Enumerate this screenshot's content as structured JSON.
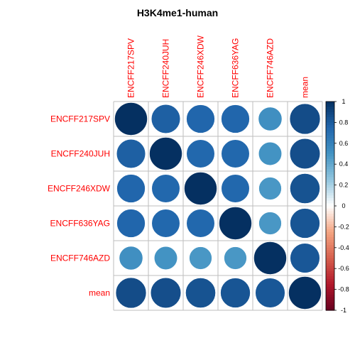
{
  "chart_data": {
    "type": "heatmap",
    "title": "H3K4me1-human",
    "rows": [
      "ENCFF217SPV",
      "ENCFF240JUH",
      "ENCFF246XDW",
      "ENCFF636YAG",
      "ENCFF746AZD",
      "mean"
    ],
    "columns": [
      "ENCFF217SPV",
      "ENCFF240JUH",
      "ENCFF246XDW",
      "ENCFF636YAG",
      "ENCFF746AZD",
      "mean"
    ],
    "values": [
      [
        1.0,
        0.78,
        0.75,
        0.75,
        0.52,
        0.87
      ],
      [
        0.78,
        1.0,
        0.74,
        0.74,
        0.5,
        0.86
      ],
      [
        0.75,
        0.74,
        1.0,
        0.74,
        0.48,
        0.84
      ],
      [
        0.75,
        0.74,
        0.74,
        1.0,
        0.48,
        0.83
      ],
      [
        0.52,
        0.5,
        0.48,
        0.48,
        1.0,
        0.82
      ],
      [
        0.87,
        0.86,
        0.84,
        0.83,
        0.82,
        1.0
      ]
    ],
    "value_range": [
      -1,
      1
    ],
    "colorbar_ticks": [
      "1",
      "0.8",
      "0.6",
      "0.4",
      "0.2",
      "0",
      "-0.2",
      "-0.4",
      "-0.6",
      "-0.8",
      "-1"
    ],
    "label_color": "#ff0000",
    "grid": true,
    "legend": "right"
  }
}
